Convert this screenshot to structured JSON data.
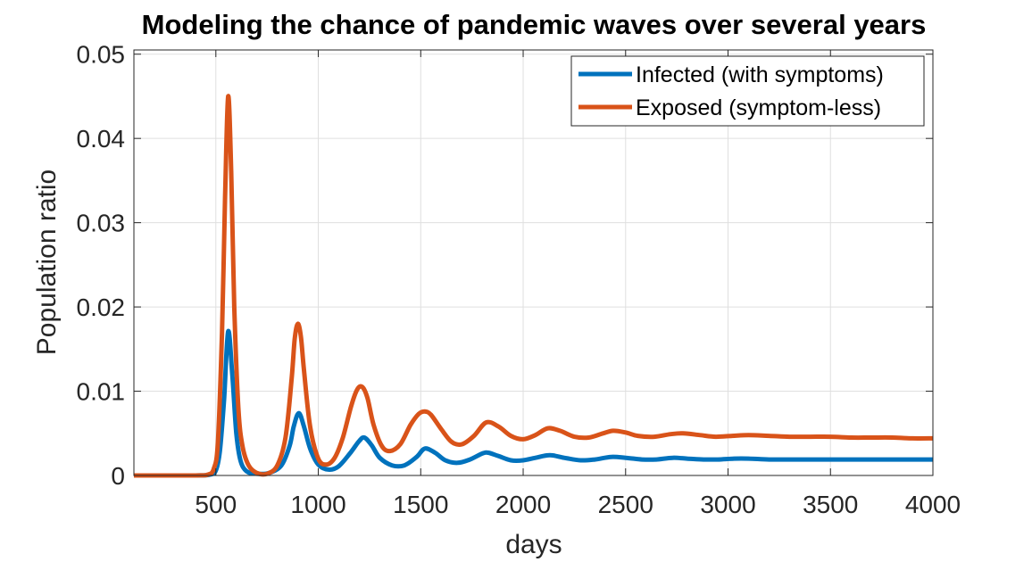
{
  "chart_data": {
    "type": "line",
    "title": "Modeling the chance of pandemic waves over several years",
    "xlabel": "days",
    "ylabel": "Population ratio",
    "xlim": [
      100,
      4000
    ],
    "ylim": [
      0,
      0.0505
    ],
    "xticks": [
      500,
      1000,
      1500,
      2000,
      2500,
      3000,
      3500,
      4000
    ],
    "xtick_labels": [
      "500",
      "1000",
      "1500",
      "2000",
      "2500",
      "3000",
      "3500",
      "4000"
    ],
    "yticks": [
      0,
      0.01,
      0.02,
      0.03,
      0.04,
      0.05
    ],
    "ytick_labels": [
      "0",
      "0.01",
      "0.02",
      "0.03",
      "0.04",
      "0.05"
    ],
    "grid": true,
    "legend_position": "top-right",
    "series": [
      {
        "name": "Infected (with symptoms)",
        "color": "#0072BD",
        "x": [
          100,
          400,
          470,
          500,
          520,
          540,
          560,
          580,
          600,
          620,
          650,
          700,
          760,
          820,
          860,
          880,
          905,
          930,
          960,
          1000,
          1050,
          1100,
          1160,
          1200,
          1225,
          1260,
          1300,
          1360,
          1420,
          1480,
          1520,
          1570,
          1620,
          1680,
          1740,
          1800,
          1830,
          1880,
          1940,
          2000,
          2060,
          2130,
          2200,
          2280,
          2350,
          2430,
          2500,
          2580,
          2650,
          2730,
          2800,
          2880,
          2950,
          3030,
          3100,
          3200,
          3300,
          3400,
          3500,
          3600,
          3700,
          3800,
          3900,
          4000
        ],
        "y": [
          0,
          0,
          0.0001,
          0.0006,
          0.003,
          0.009,
          0.0171,
          0.012,
          0.005,
          0.0018,
          0.0005,
          0.0002,
          0.0003,
          0.0012,
          0.0035,
          0.0058,
          0.0074,
          0.0058,
          0.0032,
          0.0013,
          0.0007,
          0.0011,
          0.0028,
          0.0041,
          0.0045,
          0.0036,
          0.0021,
          0.0012,
          0.0012,
          0.0022,
          0.0032,
          0.0027,
          0.0018,
          0.0015,
          0.0019,
          0.0026,
          0.0027,
          0.0023,
          0.0018,
          0.0018,
          0.0021,
          0.0024,
          0.0021,
          0.0018,
          0.0019,
          0.0022,
          0.0021,
          0.0019,
          0.0019,
          0.0021,
          0.002,
          0.0019,
          0.0019,
          0.002,
          0.002,
          0.0019,
          0.0019,
          0.0019,
          0.0019,
          0.0019,
          0.0019,
          0.0019,
          0.0019,
          0.0019
        ]
      },
      {
        "name": "Exposed (symptom-less)",
        "color": "#D95319",
        "x": [
          100,
          400,
          460,
          490,
          510,
          530,
          545,
          560,
          575,
          590,
          610,
          630,
          660,
          700,
          750,
          800,
          840,
          870,
          885,
          900,
          915,
          930,
          960,
          1000,
          1040,
          1080,
          1120,
          1160,
          1190,
          1215,
          1240,
          1270,
          1310,
          1350,
          1400,
          1450,
          1490,
          1520,
          1550,
          1600,
          1650,
          1700,
          1760,
          1820,
          1880,
          1940,
          2000,
          2060,
          2120,
          2180,
          2250,
          2320,
          2390,
          2440,
          2500,
          2560,
          2640,
          2720,
          2780,
          2860,
          2940,
          3020,
          3100,
          3200,
          3300,
          3400,
          3500,
          3600,
          3700,
          3800,
          3900,
          4000
        ],
        "y": [
          0,
          0,
          0.0001,
          0.0008,
          0.004,
          0.017,
          0.033,
          0.045,
          0.036,
          0.02,
          0.008,
          0.0035,
          0.0012,
          0.0003,
          0.0002,
          0.0012,
          0.0045,
          0.0115,
          0.0162,
          0.018,
          0.0165,
          0.0125,
          0.0058,
          0.002,
          0.0013,
          0.0021,
          0.0045,
          0.0082,
          0.0102,
          0.0105,
          0.0092,
          0.006,
          0.0035,
          0.0029,
          0.0037,
          0.006,
          0.0073,
          0.0076,
          0.0072,
          0.0055,
          0.004,
          0.0037,
          0.0047,
          0.0063,
          0.0058,
          0.0047,
          0.0043,
          0.0048,
          0.0056,
          0.0053,
          0.0046,
          0.0045,
          0.005,
          0.0053,
          0.0051,
          0.0047,
          0.0046,
          0.0049,
          0.005,
          0.0048,
          0.0046,
          0.0047,
          0.0048,
          0.0047,
          0.0046,
          0.0046,
          0.0046,
          0.0045,
          0.0045,
          0.0045,
          0.0044,
          0.0044
        ]
      }
    ]
  }
}
